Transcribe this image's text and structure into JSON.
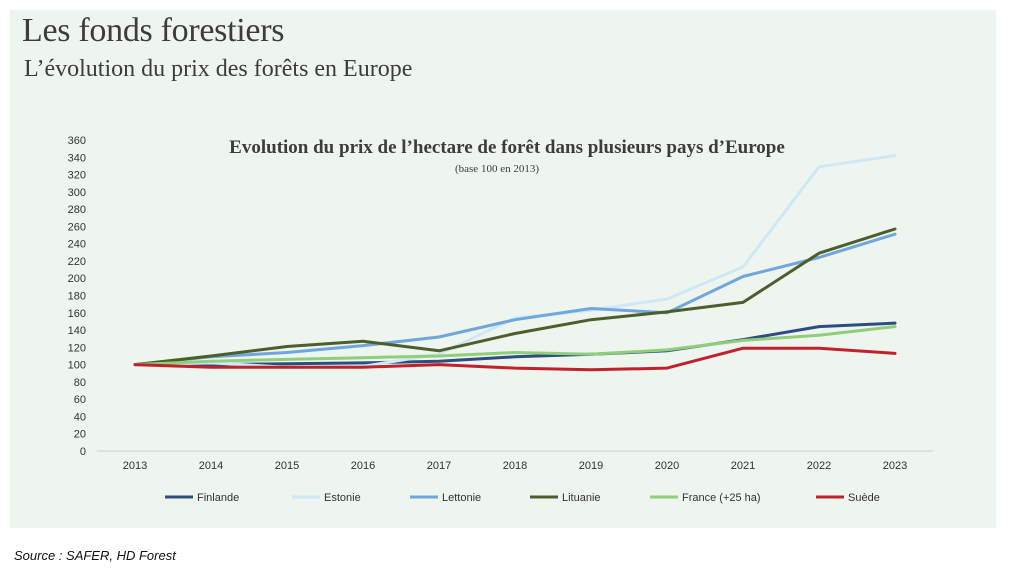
{
  "header": {
    "title": "Les fonds forestiers",
    "subtitle": "L’évolution du prix des forêts en Europe"
  },
  "footer": {
    "source": "Source : SAFER, HD Forest"
  },
  "chart_data": {
    "type": "line",
    "title": "Evolution du prix de l’hectare de forêt dans plusieurs pays d’Europe",
    "subtitle": "(base 100 en 2013)",
    "x": [
      "2013",
      "2014",
      "2015",
      "2016",
      "2017",
      "2018",
      "2019",
      "2020",
      "2021",
      "2022",
      "2023"
    ],
    "ylim": [
      0,
      360
    ],
    "yticks": [
      0,
      20,
      40,
      60,
      80,
      100,
      120,
      140,
      160,
      180,
      200,
      220,
      240,
      260,
      280,
      300,
      320,
      340,
      360
    ],
    "grid": false,
    "legend": "bottom",
    "series": [
      {
        "name": "Finlande",
        "color": "#2e4b82",
        "values": [
          100,
          100,
          101,
          102,
          104,
          109,
          112,
          116,
          129,
          144,
          148
        ]
      },
      {
        "name": "Estonie",
        "color": "#cfe8f7",
        "values": [
          100,
          102,
          97,
          98,
          112,
          154,
          163,
          176,
          213,
          329,
          342
        ]
      },
      {
        "name": "Lettonie",
        "color": "#6fa6dd",
        "values": [
          100,
          109,
          114,
          122,
          132,
          152,
          165,
          160,
          202,
          224,
          251
        ]
      },
      {
        "name": "Lituanie",
        "color": "#4d5e2d",
        "values": [
          100,
          110,
          121,
          127,
          116,
          136,
          152,
          161,
          172,
          229,
          257
        ]
      },
      {
        "name": "France (+25 ha)",
        "color": "#8fcf7a",
        "values": [
          100,
          104,
          106,
          108,
          110,
          114,
          112,
          117,
          128,
          134,
          144
        ]
      },
      {
        "name": "Suède",
        "color": "#c0222c",
        "values": [
          100,
          97,
          97,
          97,
          100,
          96,
          94,
          96,
          119,
          119,
          113
        ]
      }
    ]
  }
}
